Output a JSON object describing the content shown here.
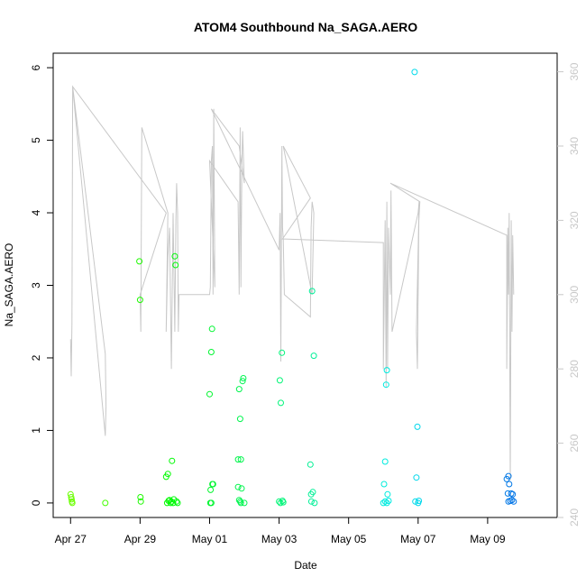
{
  "chart_data": {
    "type": "scatter",
    "title": "ATOM4 Southbound Na_SAGA.AERO",
    "xlabel": "Date",
    "ylabel": "Na_SAGA.AERO",
    "x_unit": "day_of_year_2017",
    "xlim": [
      116.5,
      131.0
    ],
    "ylim": [
      -0.2,
      6.2
    ],
    "y2lim": [
      240,
      365
    ],
    "x_ticks": [
      {
        "day": 117,
        "label": "Apr 27"
      },
      {
        "day": 119,
        "label": "Apr 29"
      },
      {
        "day": 121,
        "label": "May 01"
      },
      {
        "day": 123,
        "label": "May 03"
      },
      {
        "day": 125,
        "label": "May 05"
      },
      {
        "day": 127,
        "label": "May 07"
      },
      {
        "day": 129,
        "label": "May 09"
      }
    ],
    "y_ticks": [
      0,
      1,
      2,
      3,
      4,
      5,
      6
    ],
    "y2_ticks": [
      240,
      260,
      280,
      300,
      320,
      340,
      360
    ],
    "colors": {
      "secondary": "#c8c8c8",
      "axis": "#000000",
      "box": "#000000"
    },
    "series": [
      {
        "marker": "circle-open",
        "color_scale": "time (green to blue)",
        "points": [
          [
            117.0,
            0.12
          ],
          [
            117.02,
            0.08
          ],
          [
            117.03,
            0.05
          ],
          [
            117.04,
            0.02
          ],
          [
            117.05,
            0.0
          ],
          [
            118.0,
            0.0
          ],
          [
            118.98,
            3.33
          ],
          [
            119.0,
            2.8
          ],
          [
            119.01,
            0.08
          ],
          [
            119.02,
            0.02
          ],
          [
            119.75,
            0.36
          ],
          [
            119.8,
            0.4
          ],
          [
            119.85,
            0.04
          ],
          [
            119.88,
            0.0
          ],
          [
            119.9,
            0.02
          ],
          [
            119.92,
            0.58
          ],
          [
            119.95,
            0.0
          ],
          [
            120.0,
            3.4
          ],
          [
            120.02,
            3.28
          ],
          [
            120.05,
            0.02
          ],
          [
            120.08,
            0.0
          ],
          [
            119.78,
            0.0
          ],
          [
            119.82,
            0.03
          ],
          [
            119.97,
            0.05
          ],
          [
            121.0,
            1.5
          ],
          [
            121.02,
            0.0
          ],
          [
            121.03,
            0.18
          ],
          [
            121.05,
            2.08
          ],
          [
            121.07,
            2.4
          ],
          [
            121.08,
            0.26
          ],
          [
            121.1,
            0.26
          ],
          [
            121.05,
            0.0
          ],
          [
            121.82,
            0.22
          ],
          [
            121.85,
            1.57
          ],
          [
            121.88,
            1.16
          ],
          [
            121.82,
            0.6
          ],
          [
            121.9,
            0.6
          ],
          [
            121.95,
            1.68
          ],
          [
            121.97,
            1.72
          ],
          [
            121.85,
            0.04
          ],
          [
            121.9,
            0.0
          ],
          [
            121.92,
            0.2
          ],
          [
            122.0,
            0.0
          ],
          [
            121.88,
            0.02
          ],
          [
            123.0,
            0.02
          ],
          [
            123.02,
            1.69
          ],
          [
            123.05,
            1.38
          ],
          [
            123.08,
            2.07
          ],
          [
            123.1,
            0.03
          ],
          [
            123.04,
            0.0
          ],
          [
            123.12,
            0.01
          ],
          [
            123.9,
            0.53
          ],
          [
            123.92,
            0.12
          ],
          [
            123.95,
            2.92
          ],
          [
            123.97,
            0.15
          ],
          [
            124.0,
            2.03
          ],
          [
            123.93,
            0.02
          ],
          [
            124.02,
            0.0
          ],
          [
            126.0,
            0.0
          ],
          [
            126.02,
            0.26
          ],
          [
            126.05,
            0.57
          ],
          [
            126.08,
            1.63
          ],
          [
            126.1,
            1.83
          ],
          [
            126.12,
            0.12
          ],
          [
            126.05,
            0.02
          ],
          [
            126.15,
            0.03
          ],
          [
            126.1,
            0.0
          ],
          [
            126.9,
            5.94
          ],
          [
            126.95,
            0.35
          ],
          [
            126.98,
            1.05
          ],
          [
            126.92,
            0.02
          ],
          [
            127.0,
            0.0
          ],
          [
            127.02,
            0.03
          ],
          [
            129.55,
            0.33
          ],
          [
            129.6,
            0.37
          ],
          [
            129.62,
            0.26
          ],
          [
            129.58,
            0.13
          ],
          [
            129.68,
            0.13
          ],
          [
            129.72,
            0.12
          ],
          [
            129.6,
            0.02
          ],
          [
            129.65,
            0.03
          ],
          [
            129.7,
            0.04
          ],
          [
            129.75,
            0.02
          ]
        ]
      },
      {
        "name": "",
        "axis": "right",
        "style": "line",
        "color": "#c8c8c8",
        "points": [
          [
            117.0,
            288
          ],
          [
            117.02,
            278
          ],
          [
            117.04,
            292
          ],
          [
            117.06,
            356
          ],
          [
            118.0,
            284
          ],
          [
            118.02,
            270
          ],
          [
            118.0,
            262
          ],
          [
            117.06,
            356
          ],
          [
            119.75,
            322
          ],
          [
            119.0,
            300
          ],
          [
            119.02,
            290
          ],
          [
            119.05,
            345
          ],
          [
            119.8,
            322
          ],
          [
            119.75,
            290
          ],
          [
            119.8,
            310
          ],
          [
            119.85,
            318
          ],
          [
            119.9,
            280
          ],
          [
            119.95,
            322
          ],
          [
            120.0,
            290
          ],
          [
            120.03,
            320
          ],
          [
            120.05,
            330
          ],
          [
            120.08,
            322
          ],
          [
            120.1,
            290
          ],
          [
            120.12,
            300
          ],
          [
            121.0,
            300
          ],
          [
            121.02,
            302
          ],
          [
            121.05,
            336
          ],
          [
            121.08,
            340
          ],
          [
            121.1,
            300
          ],
          [
            121.12,
            350
          ],
          [
            121.15,
            302
          ],
          [
            121.0,
            336
          ],
          [
            121.82,
            325
          ],
          [
            121.85,
            300
          ],
          [
            121.88,
            345
          ],
          [
            121.9,
            302
          ],
          [
            121.93,
            335
          ],
          [
            121.95,
            344
          ],
          [
            122.0,
            330
          ],
          [
            121.85,
            340
          ],
          [
            121.05,
            350
          ],
          [
            123.0,
            312
          ],
          [
            123.03,
            322
          ],
          [
            123.05,
            282
          ],
          [
            123.08,
            340
          ],
          [
            123.1,
            318
          ],
          [
            123.12,
            315
          ],
          [
            123.15,
            300
          ],
          [
            123.9,
            294
          ],
          [
            123.92,
            318
          ],
          [
            123.95,
            325
          ],
          [
            124.0,
            322
          ],
          [
            123.95,
            300
          ],
          [
            123.12,
            340
          ],
          [
            123.9,
            326
          ],
          [
            123.1,
            315
          ],
          [
            126.0,
            314
          ],
          [
            126.0,
            280
          ],
          [
            126.02,
            295
          ],
          [
            126.05,
            320
          ],
          [
            126.08,
            275
          ],
          [
            126.1,
            325
          ],
          [
            126.12,
            280
          ],
          [
            126.15,
            318
          ],
          [
            126.2,
            300
          ],
          [
            126.22,
            328
          ],
          [
            126.25,
            290
          ],
          [
            127.0,
            322
          ],
          [
            127.03,
            325
          ],
          [
            126.95,
            290
          ],
          [
            126.98,
            280
          ],
          [
            127.02,
            320
          ],
          [
            127.05,
            325
          ],
          [
            126.2,
            330
          ],
          [
            129.55,
            316
          ],
          [
            129.55,
            280
          ],
          [
            129.58,
            318
          ],
          [
            129.6,
            300
          ],
          [
            129.62,
            322
          ],
          [
            129.65,
            250
          ],
          [
            129.68,
            320
          ],
          [
            129.7,
            290
          ],
          [
            129.72,
            316
          ],
          [
            129.75,
            300
          ]
        ]
      }
    ],
    "grid": false,
    "legend": "none"
  }
}
